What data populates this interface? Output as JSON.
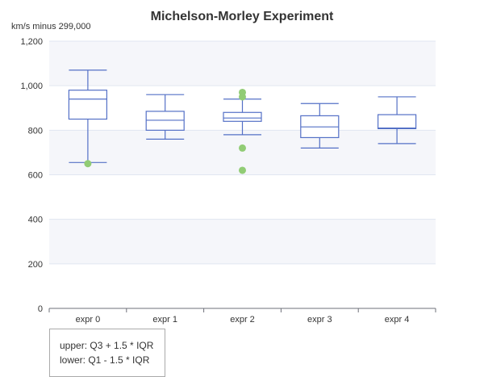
{
  "chart_data": {
    "type": "boxplot",
    "title": "Michelson-Morley Experiment",
    "y_unit_label": "km/s minus 299,000",
    "ylim": [
      0,
      1200
    ],
    "y_ticks": [
      0,
      200,
      400,
      600,
      800,
      1000,
      1200
    ],
    "y_tick_labels": [
      "0",
      "200",
      "400",
      "600",
      "800",
      "1,000",
      "1,200"
    ],
    "grid": true,
    "categories": [
      "expr 0",
      "expr 1",
      "expr 2",
      "expr 3",
      "expr 4"
    ],
    "boxes": [
      {
        "category": "expr 0",
        "lower": 655,
        "q1": 850,
        "median": 940,
        "q3": 980,
        "upper": 1070
      },
      {
        "category": "expr 1",
        "lower": 760,
        "q1": 800,
        "median": 845,
        "q3": 885,
        "upper": 960
      },
      {
        "category": "expr 2",
        "lower": 780,
        "q1": 840,
        "median": 855,
        "q3": 880,
        "upper": 940
      },
      {
        "category": "expr 3",
        "lower": 720,
        "q1": 767,
        "median": 815,
        "q3": 865,
        "upper": 920
      },
      {
        "category": "expr 4",
        "lower": 740,
        "q1": 807,
        "median": 810,
        "q3": 870,
        "upper": 950
      }
    ],
    "outliers": [
      {
        "category": "expr 0",
        "value": 650
      },
      {
        "category": "expr 2",
        "value": 970
      },
      {
        "category": "expr 2",
        "value": 950
      },
      {
        "category": "expr 2",
        "value": 720
      },
      {
        "category": "expr 2",
        "value": 620
      }
    ],
    "colors": {
      "box": "#5470c6",
      "outlier": "#91cc75",
      "band": "#f5f6fa",
      "grid": "#e0e6f1",
      "axis": "#6e7079"
    }
  },
  "legend": {
    "lines": [
      "upper: Q3 + 1.5 * IQR",
      "lower: Q1 - 1.5 * IQR"
    ]
  }
}
